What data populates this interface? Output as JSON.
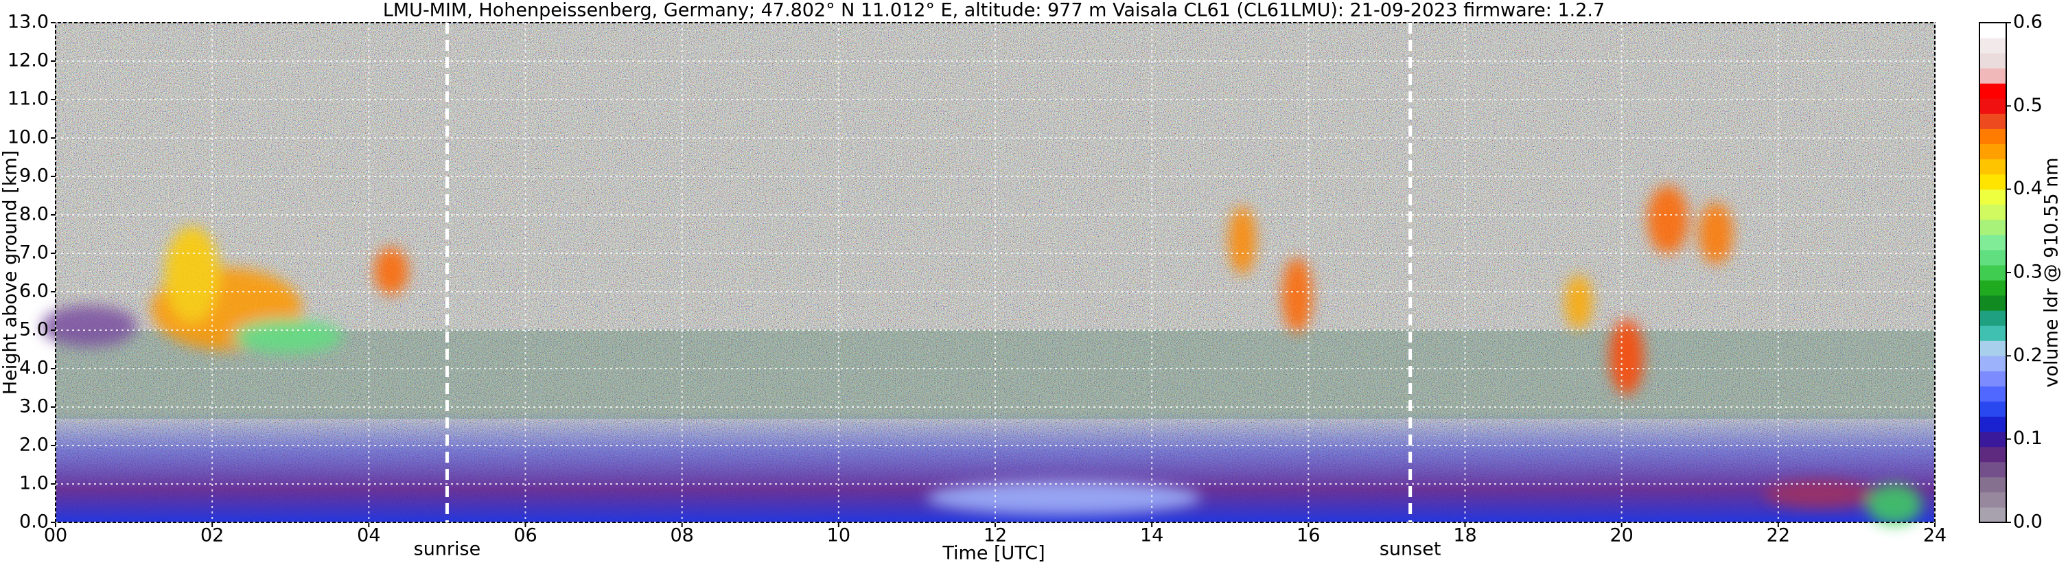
{
  "chart_data": {
    "type": "heatmap",
    "title": "LMU-MIM, Hohenpeissenberg, Germany; 47.802° N 11.012° E, altitude: 977 m    Vaisala CL61 (CL61LMU): 21-09-2023    firmware: 1.2.7",
    "x_label": "Time [UTC]",
    "y_label": "Height above ground [km]",
    "colorbar_label": "volume ldr @ 910.55 nm",
    "xlim": [
      0,
      24
    ],
    "xticks": [
      {
        "value": 0,
        "label": "00"
      },
      {
        "value": 2,
        "label": "02"
      },
      {
        "value": 4,
        "label": "04"
      },
      {
        "value": 6,
        "label": "06"
      },
      {
        "value": 8,
        "label": "08"
      },
      10,
      12,
      14,
      16,
      18,
      20,
      22,
      24
    ],
    "ylim": [
      0,
      13
    ],
    "yticks": [
      {
        "value": 0,
        "label": "0.0"
      },
      {
        "value": 1,
        "label": "1.0"
      },
      {
        "value": 2,
        "label": "2.0"
      },
      {
        "value": 3,
        "label": "3.0"
      },
      {
        "value": 4,
        "label": "4.0"
      },
      {
        "value": 5,
        "label": "5.0"
      },
      {
        "value": 6,
        "label": "6.0"
      },
      {
        "value": 7,
        "label": "7.0"
      },
      {
        "value": 8,
        "label": "8.0"
      },
      {
        "value": 9,
        "label": "9.0"
      },
      {
        "value": 10,
        "label": "10.0"
      },
      {
        "value": 11,
        "label": "11.0"
      },
      {
        "value": 12,
        "label": "12.0"
      },
      {
        "value": 13,
        "label": "13.0"
      }
    ],
    "grid": true,
    "annotations": [
      {
        "text": "sunrise",
        "x": 5.0
      },
      {
        "text": "sunset",
        "x": 17.3
      }
    ],
    "clim": [
      0,
      0.6
    ],
    "cticks": [
      {
        "value": 0,
        "label": "0.0"
      },
      0.1,
      0.2,
      0.3,
      0.4,
      0.5,
      0.6
    ],
    "colors": [
      "#a8a2ae",
      "#98889e",
      "#86708f",
      "#73508a",
      "#5e2a80",
      "#3a1a9a",
      "#1a22d0",
      "#2a48f0",
      "#5068ff",
      "#7c8cff",
      "#9cb2fa",
      "#a8d0ec",
      "#40c0b0",
      "#1fa080",
      "#128a22",
      "#20aa20",
      "#40cc50",
      "#60de80",
      "#80ec98",
      "#a8f27a",
      "#d0fa60",
      "#eeff40",
      "#ffe400",
      "#ffc400",
      "#ffa000",
      "#ff7c00",
      "#ee4a20",
      "#f01010",
      "#ff0000",
      "#f0b8b8"
    ],
    "colors_top": [
      "#eadcdc",
      "#f2eaea",
      "#ffffff"
    ]
  }
}
